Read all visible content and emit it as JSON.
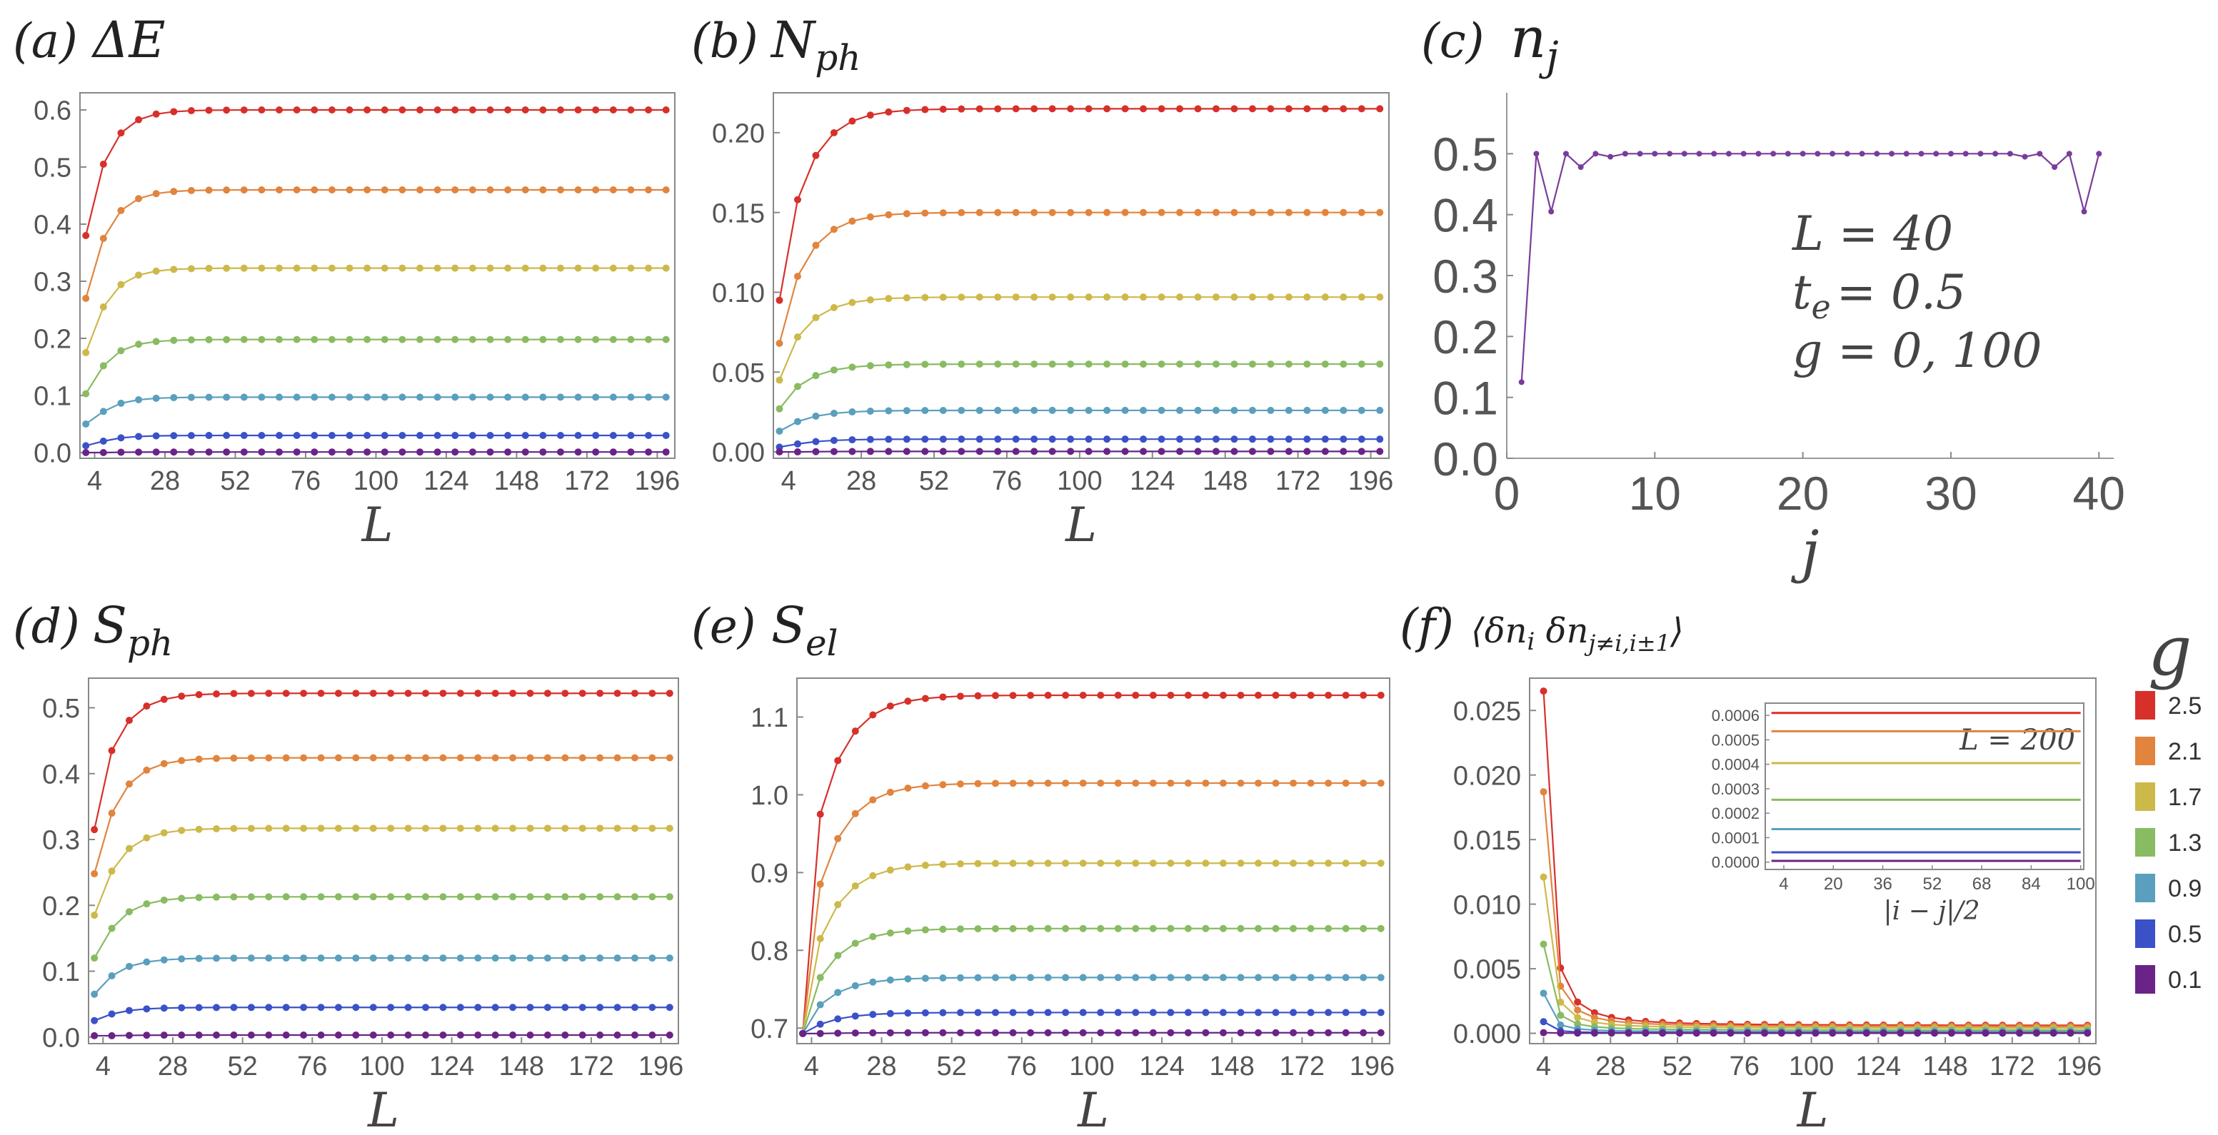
{
  "legend": {
    "title": "g",
    "items": [
      {
        "label": "2.5",
        "color": "#d7302b"
      },
      {
        "label": "2.1",
        "color": "#e1843e"
      },
      {
        "label": "1.7",
        "color": "#cdb94a"
      },
      {
        "label": "1.3",
        "color": "#89bb62"
      },
      {
        "label": "0.9",
        "color": "#5a9fbe"
      },
      {
        "label": "0.5",
        "color": "#3a51c8"
      },
      {
        "label": "0.1",
        "color": "#6a2386"
      }
    ]
  },
  "chart_data": [
    {
      "id": "a",
      "type": "line",
      "panel_label": "(a)",
      "title": "ΔE",
      "xlabel": "L",
      "ylabel": "",
      "x": {
        "start": 1,
        "end": 199,
        "count": 34
      },
      "xticks": [
        "4",
        "28",
        "52",
        "76",
        "100",
        "124",
        "148",
        "172",
        "196"
      ],
      "xlim": [
        -1,
        202
      ],
      "ylim": [
        -0.01,
        0.63
      ],
      "yticks": [
        "0.0",
        "0.1",
        "0.2",
        "0.3",
        "0.4",
        "0.5",
        "0.6"
      ],
      "series": [
        {
          "name": "2.5",
          "first": 0.38,
          "second": 0.505,
          "final": 0.6,
          "tau": 7
        },
        {
          "name": "2.1",
          "first": 0.27,
          "second": 0.375,
          "final": 0.46,
          "tau": 7
        },
        {
          "name": "1.7",
          "first": 0.175,
          "second": 0.255,
          "final": 0.323,
          "tau": 7
        },
        {
          "name": "1.3",
          "first": 0.103,
          "second": 0.152,
          "final": 0.198,
          "tau": 7
        },
        {
          "name": "0.9",
          "first": 0.05,
          "second": 0.072,
          "final": 0.097,
          "tau": 7
        },
        {
          "name": "0.5",
          "first": 0.012,
          "second": 0.02,
          "final": 0.03,
          "tau": 7
        },
        {
          "name": "0.1",
          "first": 0.0,
          "second": 0.0,
          "final": 0.001,
          "tau": 7
        }
      ]
    },
    {
      "id": "b",
      "type": "line",
      "panel_label": "(b)",
      "title": "N",
      "title_sub": "ph",
      "xlabel": "L",
      "ylabel": "",
      "x": {
        "start": 1,
        "end": 199,
        "count": 34
      },
      "xticks": [
        "4",
        "28",
        "52",
        "76",
        "100",
        "124",
        "148",
        "172",
        "196"
      ],
      "xlim": [
        -1,
        202
      ],
      "ylim": [
        -0.004,
        0.225
      ],
      "yticks": [
        "0.00",
        "0.05",
        "0.10",
        "0.15",
        "0.20"
      ],
      "series": [
        {
          "name": "2.5",
          "first": 0.095,
          "second": 0.158,
          "final": 0.215,
          "tau": 9
        },
        {
          "name": "2.1",
          "first": 0.068,
          "second": 0.11,
          "final": 0.15,
          "tau": 9
        },
        {
          "name": "1.7",
          "first": 0.045,
          "second": 0.072,
          "final": 0.097,
          "tau": 9
        },
        {
          "name": "1.3",
          "first": 0.027,
          "second": 0.041,
          "final": 0.055,
          "tau": 9
        },
        {
          "name": "0.9",
          "first": 0.013,
          "second": 0.019,
          "final": 0.026,
          "tau": 9
        },
        {
          "name": "0.5",
          "first": 0.003,
          "second": 0.005,
          "final": 0.008,
          "tau": 9
        },
        {
          "name": "0.1",
          "first": 0.0,
          "second": 0.0,
          "final": 0.0003,
          "tau": 9
        }
      ]
    },
    {
      "id": "c",
      "type": "line",
      "panel_label": "(c)",
      "title": "n",
      "title_sub": "j",
      "xlabel": "j",
      "ylabel": "",
      "xlim": [
        0,
        41
      ],
      "ylim": [
        0,
        0.6
      ],
      "xticks": [
        "0",
        "10",
        "20",
        "30",
        "40"
      ],
      "yticks": [
        "0.0",
        "0.1",
        "0.2",
        "0.3",
        "0.4",
        "0.5"
      ],
      "annotation": [
        "L = 40",
        "t",
        "= 0.5",
        "g = 0, 100"
      ],
      "annotation_sub": "e",
      "series": [
        {
          "name": "n_j",
          "color": "#7a3c9a",
          "x": [
            1,
            2,
            3,
            4,
            5,
            6,
            7,
            8,
            9,
            10,
            11,
            12,
            13,
            14,
            15,
            16,
            17,
            18,
            19,
            20,
            21,
            22,
            23,
            24,
            25,
            26,
            27,
            28,
            29,
            30,
            31,
            32,
            33,
            34,
            35,
            36,
            37,
            38,
            39,
            40
          ],
          "y": [
            0.125,
            0.5,
            0.405,
            0.5,
            0.478,
            0.5,
            0.495,
            0.5,
            0.5,
            0.5,
            0.5,
            0.5,
            0.5,
            0.5,
            0.5,
            0.5,
            0.5,
            0.5,
            0.5,
            0.5,
            0.5,
            0.5,
            0.5,
            0.5,
            0.5,
            0.5,
            0.5,
            0.5,
            0.5,
            0.5,
            0.5,
            0.5,
            0.5,
            0.5,
            0.495,
            0.5,
            0.478,
            0.5,
            0.405,
            0.5
          ]
        }
      ]
    },
    {
      "id": "d",
      "type": "line",
      "panel_label": "(d)",
      "title": "S",
      "title_sub": "ph",
      "xlabel": "L",
      "ylabel": "",
      "x": {
        "start": 1,
        "end": 199,
        "count": 34
      },
      "xticks": [
        "4",
        "28",
        "52",
        "76",
        "100",
        "124",
        "148",
        "172",
        "196"
      ],
      "xlim": [
        -1,
        202
      ],
      "ylim": [
        -0.01,
        0.545
      ],
      "yticks": [
        "0.0",
        "0.1",
        "0.2",
        "0.3",
        "0.4",
        "0.5"
      ],
      "series": [
        {
          "name": "2.5",
          "first": 0.315,
          "second": 0.435,
          "final": 0.522,
          "tau": 8
        },
        {
          "name": "2.1",
          "first": 0.248,
          "second": 0.34,
          "final": 0.424,
          "tau": 8
        },
        {
          "name": "1.7",
          "first": 0.185,
          "second": 0.252,
          "final": 0.317,
          "tau": 8
        },
        {
          "name": "1.3",
          "first": 0.12,
          "second": 0.165,
          "final": 0.213,
          "tau": 8
        },
        {
          "name": "0.9",
          "first": 0.065,
          "second": 0.093,
          "final": 0.12,
          "tau": 8
        },
        {
          "name": "0.5",
          "first": 0.025,
          "second": 0.035,
          "final": 0.045,
          "tau": 8
        },
        {
          "name": "0.1",
          "first": 0.002,
          "second": 0.002,
          "final": 0.003,
          "tau": 8
        }
      ]
    },
    {
      "id": "e",
      "type": "line",
      "panel_label": "(e)",
      "title": "S",
      "title_sub": "el",
      "xlabel": "L",
      "ylabel": "",
      "x": {
        "start": 1,
        "end": 199,
        "count": 34
      },
      "xticks": [
        "4",
        "28",
        "52",
        "76",
        "100",
        "124",
        "148",
        "172",
        "196"
      ],
      "xlim": [
        -1,
        202
      ],
      "ylim": [
        0.68,
        1.15
      ],
      "yticks": [
        "0.7",
        "0.8",
        "0.9",
        "1.0",
        "1.1"
      ],
      "series": [
        {
          "name": "2.5",
          "first": 0.693,
          "second": 0.975,
          "final": 1.128,
          "tau": 10
        },
        {
          "name": "2.1",
          "first": 0.693,
          "second": 0.885,
          "final": 1.015,
          "tau": 10
        },
        {
          "name": "1.7",
          "first": 0.693,
          "second": 0.815,
          "final": 0.912,
          "tau": 10
        },
        {
          "name": "1.3",
          "first": 0.693,
          "second": 0.765,
          "final": 0.828,
          "tau": 10
        },
        {
          "name": "0.9",
          "first": 0.693,
          "second": 0.73,
          "final": 0.765,
          "tau": 10
        },
        {
          "name": "0.5",
          "first": 0.693,
          "second": 0.705,
          "final": 0.72,
          "tau": 10
        },
        {
          "name": "0.1",
          "first": 0.693,
          "second": 0.693,
          "final": 0.694,
          "tau": 10
        }
      ]
    },
    {
      "id": "f",
      "type": "line",
      "panel_label": "(f)",
      "title": "⟨δn",
      "title_parts": [
        "i",
        " δn",
        "j≠i,i±1",
        "⟩"
      ],
      "xlabel": "L",
      "ylabel": "",
      "x": {
        "start": 4,
        "end": 199,
        "count": 33
      },
      "xticks": [
        "4",
        "28",
        "52",
        "76",
        "100",
        "124",
        "148",
        "172",
        "196"
      ],
      "xlim": [
        -1,
        202
      ],
      "ylim": [
        -0.0008,
        0.0275
      ],
      "yticks": [
        "0.000",
        "0.005",
        "0.010",
        "0.015",
        "0.020",
        "0.025"
      ],
      "decay": "power",
      "power": 1.9,
      "series": [
        {
          "name": "2.5",
          "first": 0.0265,
          "final": 0.0006
        },
        {
          "name": "2.1",
          "first": 0.0187,
          "final": 0.00052
        },
        {
          "name": "1.7",
          "first": 0.0121,
          "final": 0.0004
        },
        {
          "name": "1.3",
          "first": 0.0069,
          "final": 0.00025
        },
        {
          "name": "0.9",
          "first": 0.0031,
          "final": 0.00013
        },
        {
          "name": "0.5",
          "first": 0.0009,
          "final": 4e-05
        },
        {
          "name": "0.1",
          "first": 5e-05,
          "final": 1e-05
        }
      ],
      "inset": {
        "type": "line",
        "xlabel": "|i − j|/2",
        "annotation": "L = 200",
        "xlim": [
          -2,
          101
        ],
        "ylim": [
          -3e-05,
          0.00065
        ],
        "xticks": [
          "4",
          "20",
          "36",
          "52",
          "68",
          "84",
          "100"
        ],
        "yticks": [
          "0.0000",
          "0.0001",
          "0.0002",
          "0.0003",
          "0.0004",
          "0.0005",
          "0.0006"
        ],
        "series": [
          {
            "name": "2.5",
            "value": 0.00061
          },
          {
            "name": "2.1",
            "value": 0.000535
          },
          {
            "name": "1.7",
            "value": 0.000405
          },
          {
            "name": "1.3",
            "value": 0.000255
          },
          {
            "name": "0.9",
            "value": 0.000135
          },
          {
            "name": "0.5",
            "value": 4e-05
          },
          {
            "name": "0.1",
            "value": 5e-06
          }
        ]
      }
    }
  ]
}
